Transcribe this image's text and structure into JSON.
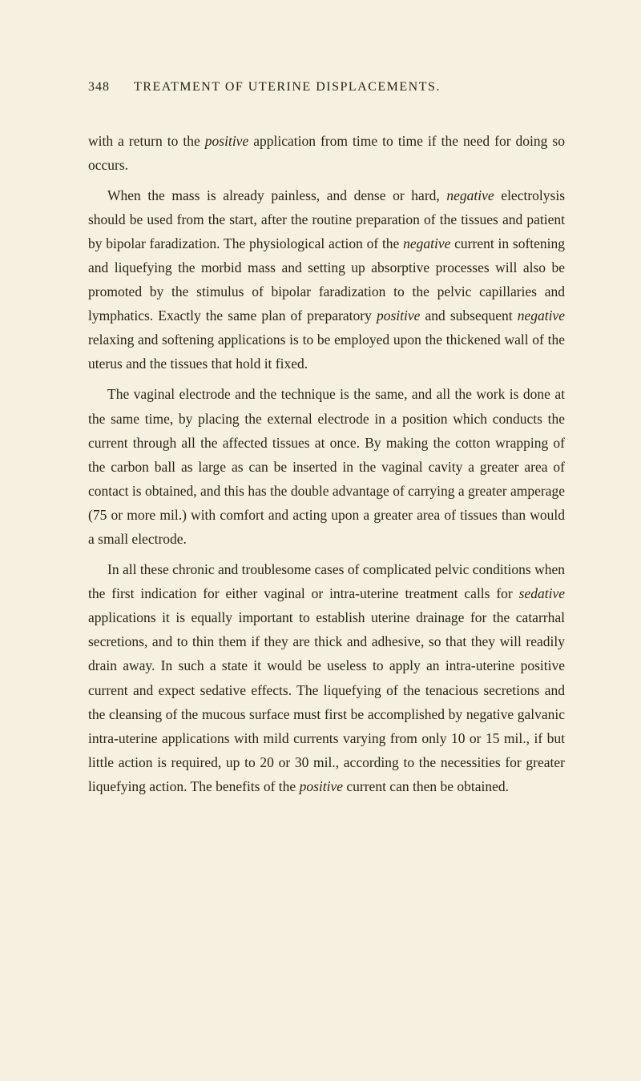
{
  "header": {
    "page_number": "348",
    "title": "TREATMENT OF UTERINE DISPLACEMENTS."
  },
  "paragraphs": {
    "p1_part1": "with a return to the ",
    "p1_italic1": "positive",
    "p1_part2": " application from time to time if the need for doing so occurs.",
    "p2_part1": "When the mass is already painless, and dense or hard, ",
    "p2_italic1": "negative",
    "p2_part2": " electrolysis should be used from the start, after the routine preparation of the tissues and patient by bipolar fara­dization. The physiological action of the ",
    "p2_italic2": "negative",
    "p2_part3": " current in softening and liquefying the morbid mass and setting up ab­sorptive processes will also be promoted by the stimulus of bipolar faradization to the pelvic capillaries and lymphatics. Exactly the same plan of preparatory ",
    "p2_italic3": "positive",
    "p2_part4": " and subsequent ",
    "p2_italic4": "negative",
    "p2_part5": " relaxing and softening applications is to be employed upon the thickened wall of the uterus and the tissues that hold it fixed.",
    "p3": "The vaginal electrode and the technique is the same, and all the work is done at the same time, by placing the external electrode in a position which conducts the current through all the affected tissues at once. By making the cotton wrapping of the carbon ball as large as can be inserted in the vaginal cavity a greater area of contact is obtained, and this has the double advantage of carrying a greater amperage (75 or more mil.) with comfort and acting upon a greater area of tissues than would a small electrode.",
    "p4_part1": "In all these chronic and troublesome cases of complicated pelvic conditions when the first indication for either vaginal or intra-uterine treatment calls for ",
    "p4_italic1": "sedative",
    "p4_part2": " applications it is equally important to establish uterine drainage for the catar­rhal secretions, and to thin them if they are thick and ad­hesive, so that they will readily drain away. In such a state it would be useless to apply an intra-uterine positive current and expect sedative effects. The liquefying of the tenacious secretions and the cleansing of the mucous surface must first be accomplished by negative galvanic intra-uterine applications with mild currents varying from only 10 or 15 mil., if but little action is required, up to 20 or 30 mil., according to the neces­sities for greater liquefying action. The benefits of the ",
    "p4_italic2": "positive",
    "p4_part3": " current can then be obtained."
  },
  "colors": {
    "background": "#f5f0e0",
    "text": "#2a2418"
  },
  "typography": {
    "body_fontsize": 17.5,
    "header_fontsize": 16,
    "line_height": 1.72,
    "font_family": "Georgia, Times New Roman, serif"
  }
}
